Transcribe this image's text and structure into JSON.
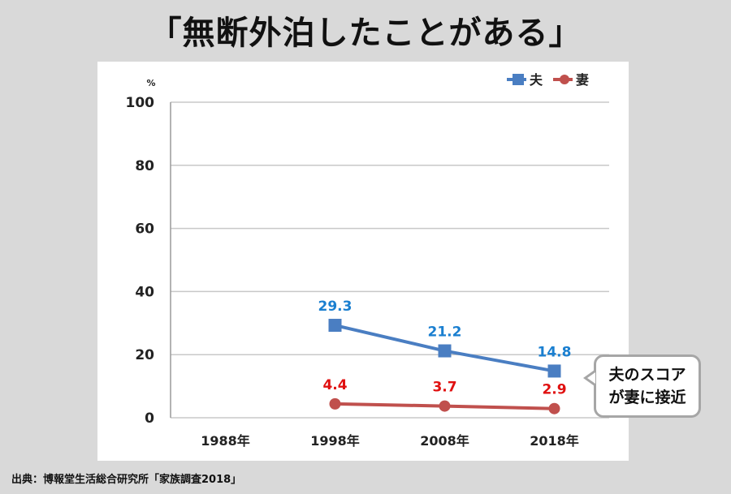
{
  "title": "「無断外泊したことがある」",
  "source": "出典：博報堂生活総合研究所「家族調査2018」",
  "callout": {
    "line1": "夫のスコア",
    "line2": "が妻に接近"
  },
  "colors": {
    "husband": "#4a7ec2",
    "wife": "#c0504d",
    "wife_label": "#e01010",
    "husband_label": "#1a7fd0"
  },
  "chart_data": {
    "type": "line",
    "categories": [
      "1988年",
      "1998年",
      "2008年",
      "2018年"
    ],
    "ylim": [
      0,
      100
    ],
    "yticks": [
      0,
      20,
      40,
      60,
      80,
      100
    ],
    "ylabel": "%",
    "xlabel": "",
    "grid": true,
    "legend_position": "top-right",
    "series": [
      {
        "name": "夫",
        "marker": "square",
        "values": [
          null,
          29.3,
          21.2,
          14.8
        ],
        "labels": [
          "",
          "29.3",
          "21.2",
          "14.8"
        ]
      },
      {
        "name": "妻",
        "marker": "circle",
        "values": [
          null,
          4.4,
          3.7,
          2.9
        ],
        "labels": [
          "",
          "4.4",
          "3.7",
          "2.9"
        ]
      }
    ]
  }
}
